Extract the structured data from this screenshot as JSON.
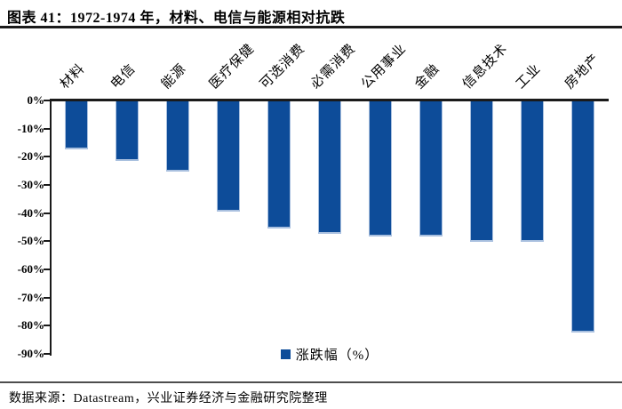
{
  "header": {
    "title": "图表 41：1972-1974 年，材料、电信与能源相对抗跌"
  },
  "legend": {
    "label": "涨跌幅（%）"
  },
  "footer": {
    "text": "数据来源：Datastream，兴业证券经济与金融研究院整理"
  },
  "colors": {
    "bar": "#0D4C99",
    "bar_edge": "#A9C0DF",
    "axis": "#1A1A1A",
    "divider": "#4D4D4D"
  },
  "chart_data": {
    "type": "bar",
    "title": "图表 41：1972-1974 年，材料、电信与能源相对抗跌",
    "categories": [
      "材料",
      "电信",
      "能源",
      "医疗保健",
      "可选消费",
      "必需消费",
      "公用事业",
      "金融",
      "信息技术",
      "工业",
      "房地产"
    ],
    "series": [
      {
        "name": "涨跌幅（%）",
        "values": [
          -17,
          -21,
          -25,
          -39,
          -45,
          -47,
          -48,
          -48,
          -50,
          -50,
          -82
        ]
      }
    ],
    "xlabel": "",
    "ylabel": "",
    "ylim": [
      -90,
      0
    ],
    "yticks": [
      0,
      -10,
      -20,
      -30,
      -40,
      -50,
      -60,
      -70,
      -80,
      -90
    ],
    "ytick_labels": [
      "0%",
      "-10%",
      "-20%",
      "-30%",
      "-40%",
      "-50%",
      "-60%",
      "-70%",
      "-80%",
      "-90%"
    ],
    "grid": false,
    "legend_position": "bottom"
  }
}
